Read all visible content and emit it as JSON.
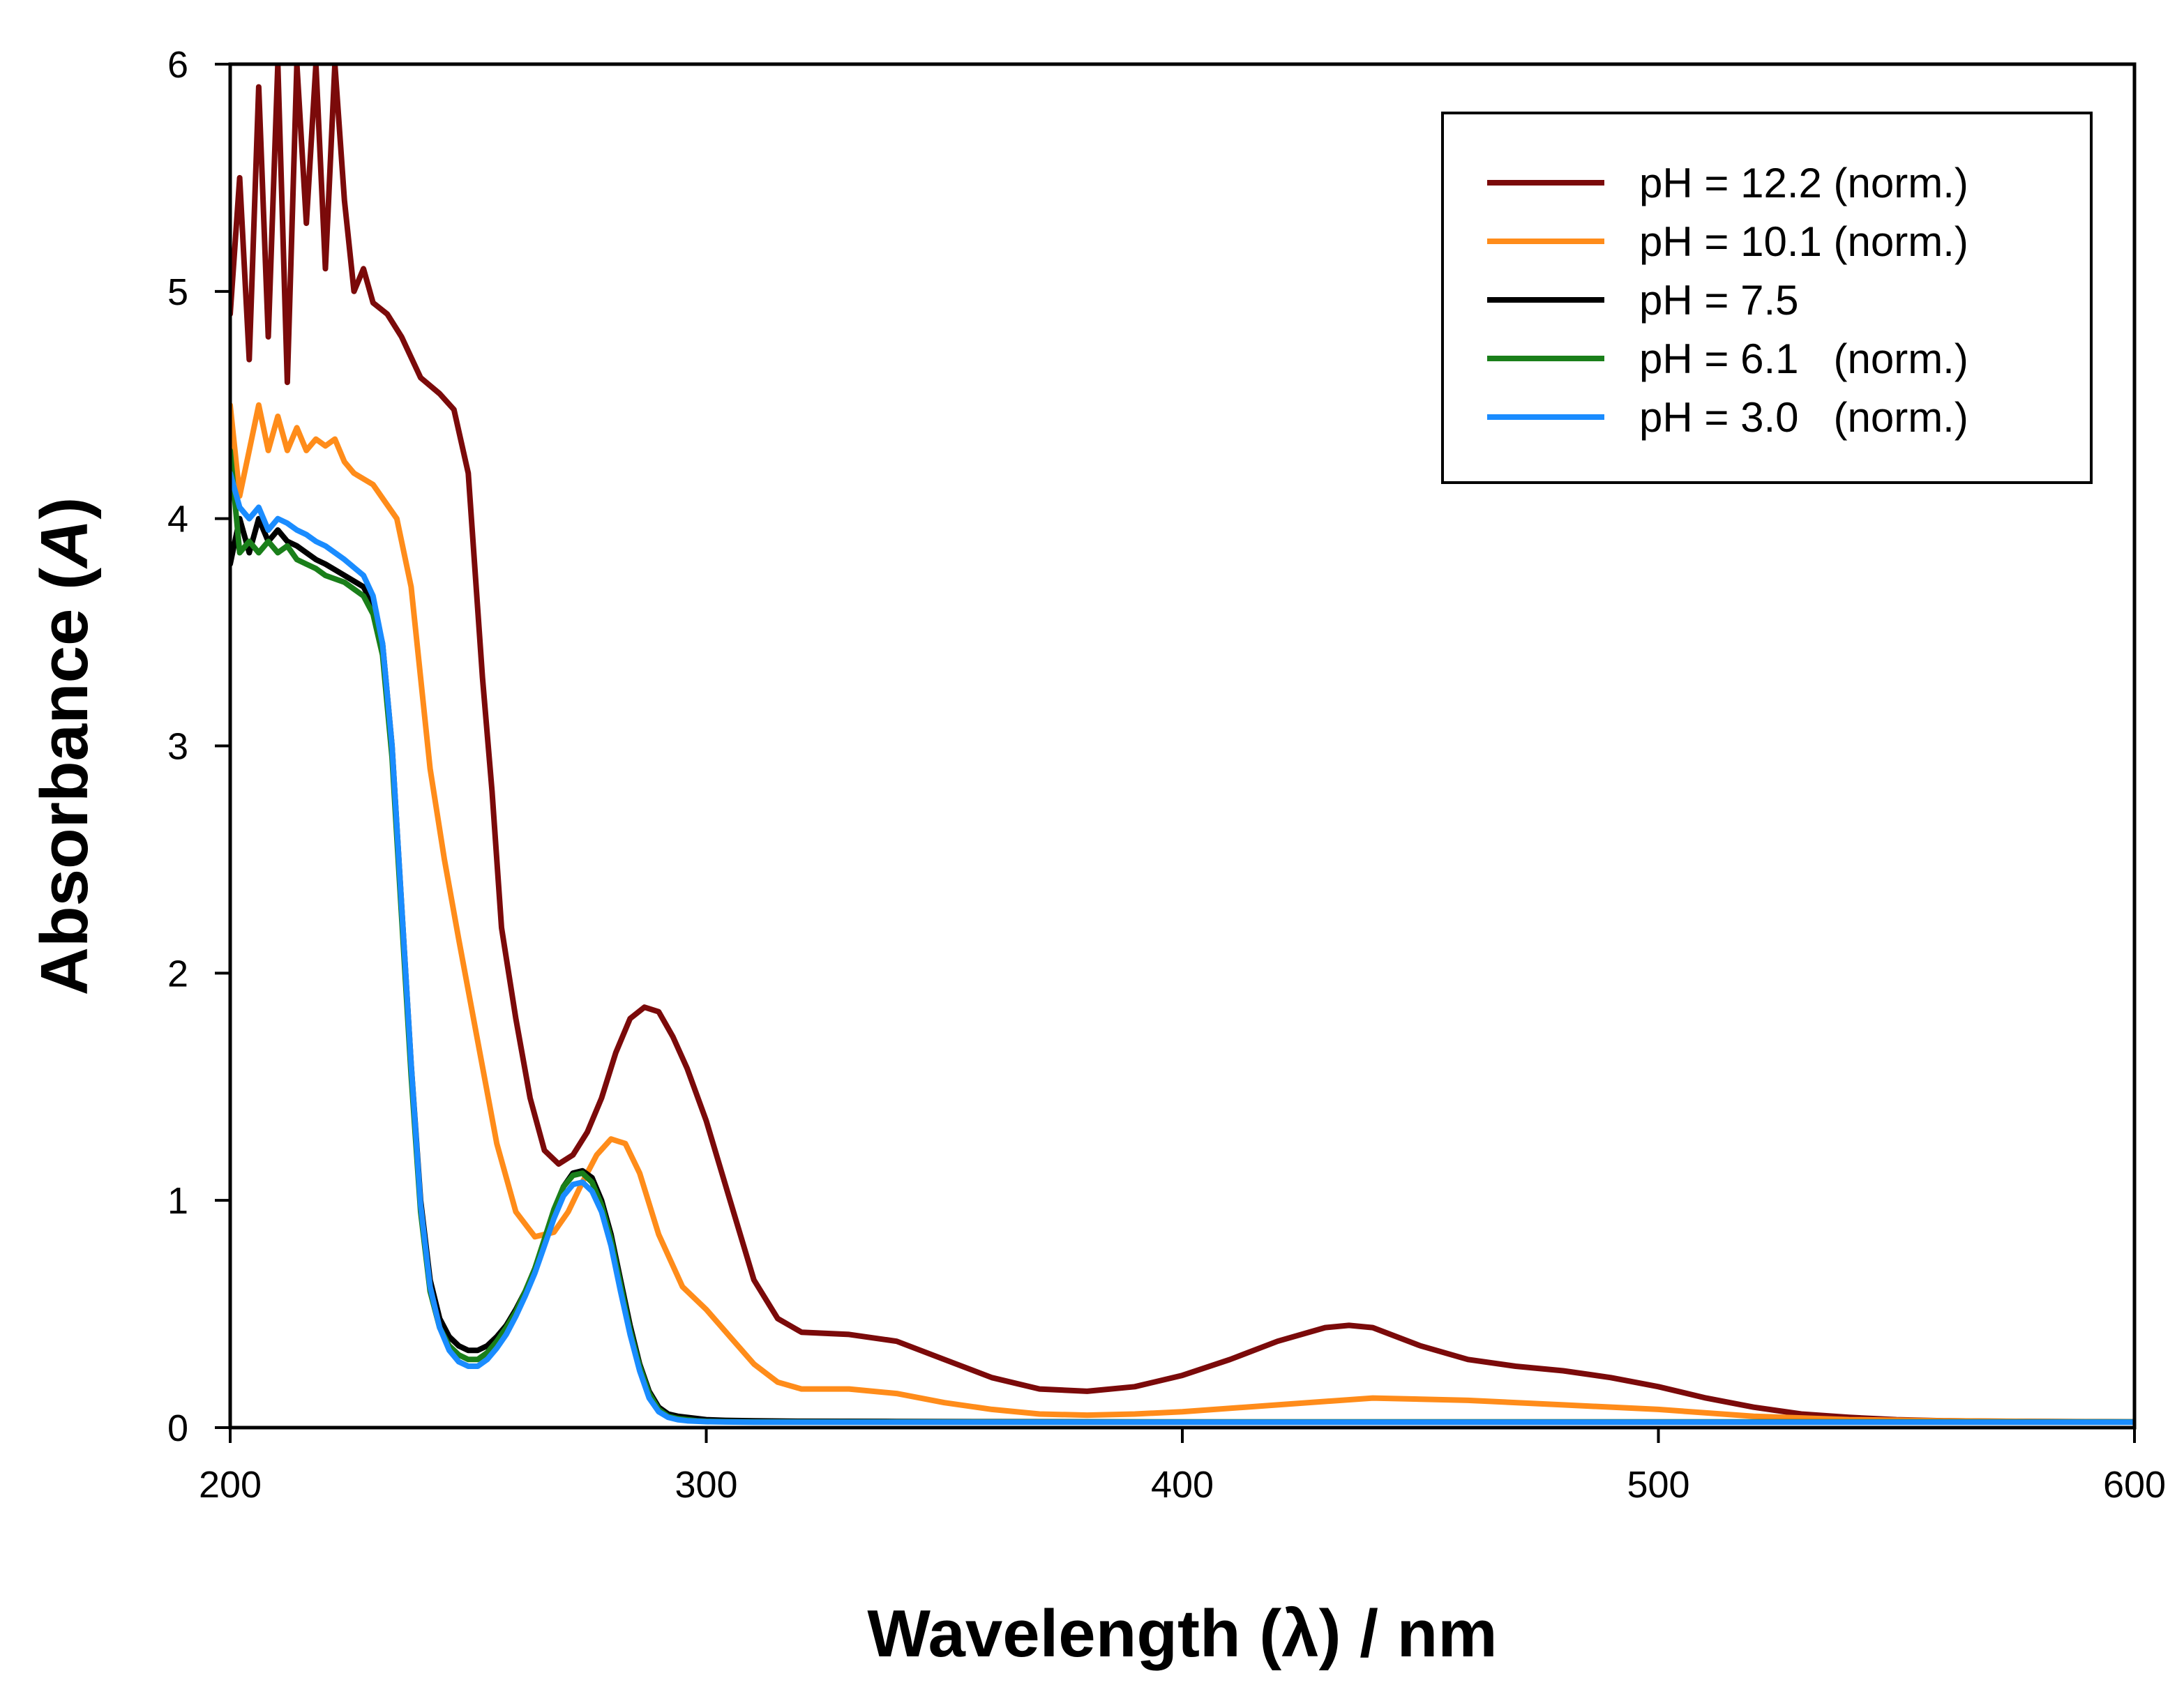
{
  "chart_data": {
    "type": "line",
    "title": "",
    "xlabel": "Wavelength (λ) / nm",
    "ylabel_main": "Absorbance (",
    "ylabel_italic": "A",
    "ylabel_end": ")",
    "xlim": [
      200,
      600
    ],
    "ylim": [
      0,
      6
    ],
    "xticks": [
      "200",
      "300",
      "400",
      "500",
      "600"
    ],
    "yticks": [
      "0",
      "1",
      "2",
      "3",
      "4",
      "5",
      "6"
    ],
    "xtick_values": [
      200,
      300,
      400,
      500,
      600
    ],
    "ytick_values": [
      0,
      1,
      2,
      3,
      4,
      5,
      6
    ],
    "grid": false,
    "legend_position": "top-right",
    "series": [
      {
        "name": "pH = 12.2 (norm.)",
        "color": "#7b0a0a",
        "x": [
          200,
          202,
          204,
          206,
          208,
          210,
          212,
          214,
          216,
          218,
          220,
          222,
          224,
          226,
          228,
          230,
          233,
          236,
          240,
          244,
          247,
          250,
          253,
          255,
          257,
          260,
          263,
          266,
          269,
          272,
          275,
          278,
          281,
          284,
          287,
          290,
          293,
          296,
          300,
          305,
          310,
          315,
          320,
          330,
          340,
          350,
          360,
          370,
          380,
          390,
          400,
          410,
          420,
          430,
          435,
          440,
          450,
          460,
          470,
          480,
          490,
          500,
          510,
          520,
          530,
          540,
          550,
          560,
          570,
          580,
          590,
          600
        ],
        "y": [
          4.9,
          5.5,
          4.7,
          5.9,
          4.8,
          6.0,
          4.6,
          6.0,
          5.3,
          6.0,
          5.1,
          6.0,
          5.4,
          5.0,
          5.1,
          4.95,
          4.9,
          4.8,
          4.62,
          4.55,
          4.48,
          4.2,
          3.3,
          2.8,
          2.2,
          1.8,
          1.45,
          1.22,
          1.16,
          1.2,
          1.3,
          1.45,
          1.65,
          1.8,
          1.85,
          1.83,
          1.72,
          1.58,
          1.35,
          1.0,
          0.65,
          0.48,
          0.42,
          0.41,
          0.38,
          0.3,
          0.22,
          0.17,
          0.16,
          0.18,
          0.23,
          0.3,
          0.38,
          0.44,
          0.45,
          0.44,
          0.36,
          0.3,
          0.27,
          0.25,
          0.22,
          0.18,
          0.13,
          0.09,
          0.06,
          0.045,
          0.035,
          0.03,
          0.028,
          0.027,
          0.026,
          0.025
        ]
      },
      {
        "name": "pH = 10.1 (norm.)",
        "color": "#ff8c1a",
        "x": [
          200,
          202,
          204,
          206,
          208,
          210,
          212,
          214,
          216,
          218,
          220,
          222,
          224,
          226,
          230,
          235,
          238,
          240,
          242,
          245,
          248,
          252,
          256,
          260,
          264,
          268,
          271,
          274,
          277,
          280,
          283,
          286,
          290,
          295,
          300,
          305,
          310,
          315,
          320,
          330,
          340,
          350,
          360,
          370,
          380,
          390,
          400,
          420,
          440,
          460,
          480,
          500,
          520,
          540,
          560,
          580,
          600
        ],
        "y": [
          4.5,
          4.1,
          4.3,
          4.5,
          4.3,
          4.45,
          4.3,
          4.4,
          4.3,
          4.35,
          4.32,
          4.35,
          4.25,
          4.2,
          4.15,
          4.0,
          3.7,
          3.3,
          2.9,
          2.5,
          2.15,
          1.7,
          1.25,
          0.95,
          0.84,
          0.86,
          0.95,
          1.08,
          1.2,
          1.27,
          1.25,
          1.12,
          0.85,
          0.62,
          0.52,
          0.4,
          0.28,
          0.2,
          0.17,
          0.17,
          0.15,
          0.11,
          0.08,
          0.06,
          0.055,
          0.06,
          0.07,
          0.1,
          0.13,
          0.12,
          0.1,
          0.08,
          0.05,
          0.035,
          0.03,
          0.027,
          0.025
        ]
      },
      {
        "name": "pH = 7.5",
        "color": "#000000",
        "x": [
          200,
          202,
          204,
          206,
          208,
          210,
          212,
          214,
          216,
          218,
          220,
          224,
          228,
          230,
          232,
          234,
          236,
          238,
          240,
          242,
          244,
          246,
          248,
          250,
          252,
          254,
          256,
          258,
          260,
          262,
          264,
          266,
          268,
          270,
          272,
          274,
          276,
          278,
          280,
          282,
          284,
          286,
          288,
          290,
          292,
          294,
          296,
          298,
          300,
          304,
          310,
          320,
          340,
          360,
          400,
          450,
          500,
          550,
          600
        ],
        "y": [
          3.8,
          4.0,
          3.85,
          4.0,
          3.9,
          3.95,
          3.9,
          3.88,
          3.85,
          3.82,
          3.8,
          3.75,
          3.7,
          3.62,
          3.45,
          3.0,
          2.3,
          1.6,
          1.0,
          0.65,
          0.48,
          0.4,
          0.36,
          0.34,
          0.34,
          0.36,
          0.4,
          0.45,
          0.52,
          0.6,
          0.7,
          0.82,
          0.95,
          1.06,
          1.12,
          1.13,
          1.1,
          1.0,
          0.85,
          0.65,
          0.45,
          0.28,
          0.16,
          0.09,
          0.06,
          0.05,
          0.045,
          0.04,
          0.035,
          0.032,
          0.03,
          0.028,
          0.027,
          0.026,
          0.025,
          0.025,
          0.025,
          0.025,
          0.025
        ]
      },
      {
        "name": "pH = 6.1   (norm.)",
        "color": "#1a7f1a",
        "x": [
          200,
          202,
          204,
          206,
          208,
          210,
          212,
          214,
          216,
          218,
          220,
          224,
          228,
          230,
          232,
          234,
          236,
          238,
          240,
          242,
          244,
          246,
          248,
          250,
          252,
          254,
          256,
          258,
          260,
          262,
          264,
          266,
          268,
          270,
          272,
          274,
          276,
          278,
          280,
          282,
          284,
          286,
          288,
          290,
          292,
          294,
          296,
          298,
          300,
          304,
          310,
          320,
          340,
          360,
          400,
          450,
          500,
          550,
          600
        ],
        "y": [
          4.3,
          3.85,
          3.9,
          3.85,
          3.9,
          3.85,
          3.88,
          3.82,
          3.8,
          3.78,
          3.75,
          3.72,
          3.66,
          3.58,
          3.4,
          2.95,
          2.25,
          1.55,
          0.95,
          0.6,
          0.44,
          0.36,
          0.32,
          0.3,
          0.3,
          0.33,
          0.38,
          0.44,
          0.51,
          0.6,
          0.7,
          0.83,
          0.96,
          1.06,
          1.11,
          1.12,
          1.08,
          0.98,
          0.83,
          0.63,
          0.43,
          0.27,
          0.15,
          0.08,
          0.05,
          0.04,
          0.035,
          0.03,
          0.028,
          0.026,
          0.025,
          0.025,
          0.025,
          0.025,
          0.025,
          0.025,
          0.025,
          0.025,
          0.025
        ]
      },
      {
        "name": "pH = 3.0   (norm.)",
        "color": "#1a8cff",
        "x": [
          200,
          202,
          204,
          206,
          208,
          210,
          212,
          214,
          216,
          218,
          220,
          224,
          228,
          230,
          232,
          234,
          236,
          238,
          240,
          242,
          244,
          246,
          248,
          250,
          252,
          254,
          256,
          258,
          260,
          262,
          264,
          266,
          268,
          270,
          272,
          274,
          276,
          278,
          280,
          282,
          284,
          286,
          288,
          290,
          292,
          294,
          296,
          298,
          300,
          304,
          310,
          320,
          340,
          360,
          400,
          450,
          500,
          550,
          600
        ],
        "y": [
          4.2,
          4.05,
          4.0,
          4.05,
          3.95,
          4.0,
          3.98,
          3.95,
          3.93,
          3.9,
          3.88,
          3.82,
          3.75,
          3.66,
          3.45,
          3.0,
          2.3,
          1.6,
          0.98,
          0.62,
          0.44,
          0.34,
          0.29,
          0.27,
          0.27,
          0.3,
          0.35,
          0.41,
          0.49,
          0.58,
          0.68,
          0.8,
          0.92,
          1.02,
          1.07,
          1.08,
          1.04,
          0.95,
          0.8,
          0.6,
          0.41,
          0.25,
          0.13,
          0.07,
          0.045,
          0.035,
          0.03,
          0.028,
          0.026,
          0.025,
          0.024,
          0.024,
          0.024,
          0.024,
          0.024,
          0.024,
          0.024,
          0.024,
          0.024
        ]
      }
    ]
  }
}
